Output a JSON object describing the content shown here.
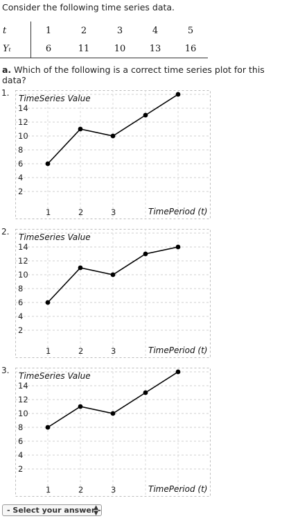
{
  "intro_text": "Consider the following time series data.",
  "table": {
    "t_label": "t",
    "y_label": "Yₜ",
    "t_values": [
      "1",
      "2",
      "3",
      "4",
      "5"
    ],
    "y_values": [
      "6",
      "11",
      "10",
      "13",
      "16"
    ]
  },
  "question": {
    "prefix": "a.",
    "text": "Which of the following is a correct time series plot for this data?"
  },
  "options": [
    {
      "number": "1.",
      "ylabel": "TimeSeries Value",
      "xlabel": "TimePeriod (t)"
    },
    {
      "number": "2.",
      "ylabel": "TimeSeries Value",
      "xlabel": "TimePeriod (t)"
    },
    {
      "number": "3.",
      "ylabel": "TimeSeries Value",
      "xlabel": "TimePeriod (t)"
    }
  ],
  "chart_data": [
    {
      "type": "line",
      "x": [
        1,
        2,
        3,
        4,
        5
      ],
      "y": [
        6,
        11,
        10,
        13,
        16
      ],
      "yticks": [
        "14",
        "12",
        "10",
        "8",
        "6",
        "4",
        "2"
      ],
      "xticks": [
        "1",
        "2",
        "3"
      ],
      "ylabel": "TimeSeries Value",
      "xlabel": "TimePeriod (t)",
      "ylim": [
        0,
        16
      ],
      "xlim": [
        0,
        5
      ],
      "grid": true
    },
    {
      "type": "line",
      "x": [
        1,
        2,
        3,
        4,
        5
      ],
      "y": [
        6,
        11,
        10,
        13,
        14
      ],
      "yticks": [
        "14",
        "12",
        "10",
        "8",
        "6",
        "4",
        "2"
      ],
      "xticks": [
        "1",
        "2",
        "3"
      ],
      "ylabel": "TimeSeries Value",
      "xlabel": "TimePeriod (t)",
      "ylim": [
        0,
        16
      ],
      "xlim": [
        0,
        5
      ],
      "grid": true
    },
    {
      "type": "line",
      "x": [
        1,
        2,
        3,
        4,
        5
      ],
      "y": [
        8,
        11,
        10,
        13,
        16
      ],
      "yticks": [
        "14",
        "12",
        "10",
        "8",
        "6",
        "4",
        "2"
      ],
      "xticks": [
        "1",
        "2",
        "3"
      ],
      "ylabel": "TimeSeries Value",
      "xlabel": "TimePeriod (t)",
      "ylim": [
        0,
        16
      ],
      "xlim": [
        0,
        5
      ],
      "grid": true
    }
  ],
  "answer_select": {
    "selected": "- Select your answer -"
  }
}
